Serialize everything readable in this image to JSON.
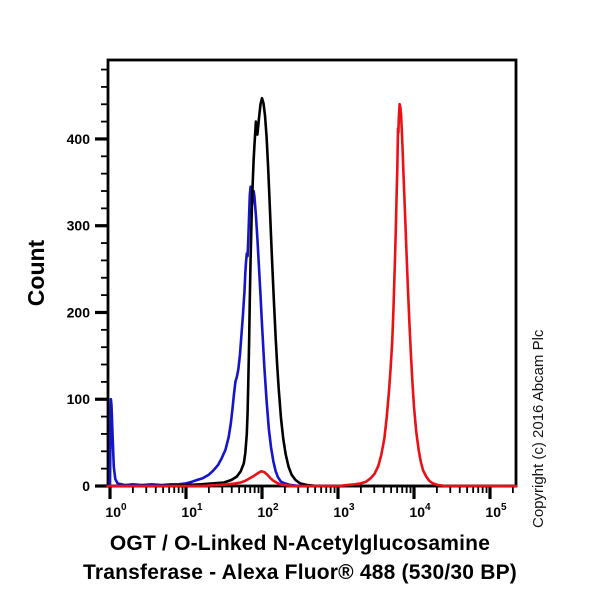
{
  "figure": {
    "title_line1": "OGT / O-Linked N-Acetylglucosamine",
    "title_line2": "Transferase - Alexa Fluor® 488 (530/30 BP)",
    "copyright": "Copyright (c) 2016 Abcam Plc",
    "background_color": "#ffffff",
    "frame_color": "#000000"
  },
  "chart_data": {
    "type": "line",
    "title": "OGT / O-Linked N-Acetylglucosamine Transferase - Alexa Fluor® 488 (530/30 BP)",
    "xlabel": "OGT / O-Linked N-Acetylglucosamine Transferase - Alexa Fluor® 488 (530/30 BP)",
    "ylabel": "Count",
    "grid": false,
    "legend": "none",
    "x_axis": {
      "scale": "log10",
      "tick_base": "10",
      "tick_exponents": [
        0,
        1,
        2,
        3,
        4,
        5
      ],
      "tick_labels": [
        "10^0",
        "10^1",
        "10^2",
        "10^3",
        "10^4",
        "10^5"
      ],
      "range_log10": [
        -0.03,
        5.34
      ]
    },
    "y_axis": {
      "label": "Count",
      "ticks": [
        0,
        100,
        200,
        300,
        400
      ],
      "tick_labels": [
        "0",
        "100",
        "200",
        "300",
        "400"
      ],
      "minor_step": 20,
      "range": [
        0,
        491
      ]
    },
    "point_format": "[log10(fluorescence intensity), count]",
    "series": [
      {
        "name": "blue-curve",
        "color": "#1414cd",
        "peak": {
          "log10_x": 1.85,
          "x": 71,
          "count": 345
        },
        "points": [
          [
            -0.03,
            0
          ],
          [
            0,
            1
          ],
          [
            0.005,
            50
          ],
          [
            0.012,
            100
          ],
          [
            0.02,
            93
          ],
          [
            0.035,
            55
          ],
          [
            0.05,
            22
          ],
          [
            0.07,
            8
          ],
          [
            0.1,
            3
          ],
          [
            0.2,
            1
          ],
          [
            0.3,
            2
          ],
          [
            0.42,
            1
          ],
          [
            0.55,
            2
          ],
          [
            0.68,
            1
          ],
          [
            0.8,
            2
          ],
          [
            0.9,
            2
          ],
          [
            1.0,
            3
          ],
          [
            1.08,
            5
          ],
          [
            1.15,
            7
          ],
          [
            1.22,
            9
          ],
          [
            1.3,
            13
          ],
          [
            1.36,
            18
          ],
          [
            1.42,
            24
          ],
          [
            1.47,
            32
          ],
          [
            1.52,
            42
          ],
          [
            1.56,
            56
          ],
          [
            1.59,
            72
          ],
          [
            1.61,
            88
          ],
          [
            1.63,
            105
          ],
          [
            1.65,
            120
          ],
          [
            1.67,
            126
          ],
          [
            1.69,
            135
          ],
          [
            1.71,
            152
          ],
          [
            1.73,
            175
          ],
          [
            1.75,
            198
          ],
          [
            1.77,
            225
          ],
          [
            1.78,
            245
          ],
          [
            1.79,
            258
          ],
          [
            1.8,
            268
          ],
          [
            1.81,
            265
          ],
          [
            1.82,
            285
          ],
          [
            1.83,
            312
          ],
          [
            1.84,
            335
          ],
          [
            1.85,
            345
          ],
          [
            1.86,
            337
          ],
          [
            1.87,
            325
          ],
          [
            1.88,
            331
          ],
          [
            1.89,
            340
          ],
          [
            1.9,
            334
          ],
          [
            1.92,
            312
          ],
          [
            1.94,
            285
          ],
          [
            1.96,
            252
          ],
          [
            1.98,
            220
          ],
          [
            2.0,
            186
          ],
          [
            2.03,
            138
          ],
          [
            2.06,
            98
          ],
          [
            2.09,
            66
          ],
          [
            2.12,
            44
          ],
          [
            2.15,
            28
          ],
          [
            2.18,
            17
          ],
          [
            2.21,
            10
          ],
          [
            2.25,
            5
          ],
          [
            2.3,
            3
          ],
          [
            2.38,
            1
          ],
          [
            2.5,
            0
          ],
          [
            3.0,
            0
          ]
        ]
      },
      {
        "name": "black-curve",
        "color": "#000000",
        "peak": {
          "log10_x": 2.0,
          "x": 100,
          "count": 447
        },
        "points": [
          [
            -0.03,
            0
          ],
          [
            0.6,
            0
          ],
          [
            1.0,
            1
          ],
          [
            1.2,
            2
          ],
          [
            1.35,
            3
          ],
          [
            1.5,
            4
          ],
          [
            1.6,
            7
          ],
          [
            1.67,
            11
          ],
          [
            1.72,
            17
          ],
          [
            1.76,
            26
          ],
          [
            1.78,
            38
          ],
          [
            1.8,
            60
          ],
          [
            1.81,
            85
          ],
          [
            1.82,
            120
          ],
          [
            1.83,
            165
          ],
          [
            1.84,
            215
          ],
          [
            1.85,
            262
          ],
          [
            1.86,
            300
          ],
          [
            1.87,
            330
          ],
          [
            1.88,
            355
          ],
          [
            1.89,
            375
          ],
          [
            1.9,
            392
          ],
          [
            1.91,
            407
          ],
          [
            1.92,
            420
          ],
          [
            1.93,
            410
          ],
          [
            1.94,
            405
          ],
          [
            1.96,
            424
          ],
          [
            1.98,
            440
          ],
          [
            2.0,
            447
          ],
          [
            2.02,
            441
          ],
          [
            2.04,
            427
          ],
          [
            2.06,
            402
          ],
          [
            2.08,
            368
          ],
          [
            2.1,
            328
          ],
          [
            2.12,
            286
          ],
          [
            2.14,
            246
          ],
          [
            2.16,
            206
          ],
          [
            2.18,
            170
          ],
          [
            2.2,
            139
          ],
          [
            2.22,
            112
          ],
          [
            2.25,
            78
          ],
          [
            2.28,
            54
          ],
          [
            2.31,
            37
          ],
          [
            2.35,
            22
          ],
          [
            2.39,
            13
          ],
          [
            2.44,
            7
          ],
          [
            2.5,
            3
          ],
          [
            2.6,
            1
          ],
          [
            2.72,
            0
          ],
          [
            3.2,
            0
          ],
          [
            5.34,
            0
          ]
        ]
      },
      {
        "name": "red-curve",
        "color": "#ea1016",
        "peak": {
          "log10_x": 3.81,
          "x": 6460,
          "count": 440
        },
        "secondary_bump": {
          "log10_x": 2.0,
          "x": 100,
          "count": 17
        },
        "points": [
          [
            -0.03,
            0
          ],
          [
            0.8,
            0
          ],
          [
            1.2,
            0
          ],
          [
            1.4,
            1
          ],
          [
            1.55,
            2
          ],
          [
            1.65,
            3
          ],
          [
            1.72,
            4
          ],
          [
            1.78,
            6
          ],
          [
            1.84,
            9
          ],
          [
            1.9,
            12
          ],
          [
            1.95,
            15
          ],
          [
            1.99,
            17
          ],
          [
            2.03,
            16
          ],
          [
            2.07,
            13
          ],
          [
            2.11,
            9
          ],
          [
            2.15,
            6
          ],
          [
            2.19,
            4
          ],
          [
            2.24,
            2
          ],
          [
            2.3,
            1
          ],
          [
            2.4,
            0
          ],
          [
            3.0,
            0
          ],
          [
            3.12,
            1
          ],
          [
            3.22,
            2
          ],
          [
            3.3,
            3
          ],
          [
            3.37,
            5
          ],
          [
            3.43,
            9
          ],
          [
            3.48,
            14
          ],
          [
            3.53,
            23
          ],
          [
            3.57,
            36
          ],
          [
            3.61,
            55
          ],
          [
            3.64,
            78
          ],
          [
            3.67,
            108
          ],
          [
            3.69,
            132
          ],
          [
            3.71,
            162
          ],
          [
            3.72,
            180
          ],
          [
            3.73,
            205
          ],
          [
            3.74,
            232
          ],
          [
            3.75,
            262
          ],
          [
            3.76,
            295
          ],
          [
            3.77,
            330
          ],
          [
            3.78,
            365
          ],
          [
            3.785,
            392
          ],
          [
            3.79,
            412
          ],
          [
            3.795,
            407
          ],
          [
            3.8,
            424
          ],
          [
            3.81,
            440
          ],
          [
            3.82,
            437
          ],
          [
            3.83,
            427
          ],
          [
            3.84,
            410
          ],
          [
            3.85,
            388
          ],
          [
            3.86,
            362
          ],
          [
            3.88,
            318
          ],
          [
            3.9,
            272
          ],
          [
            3.92,
            228
          ],
          [
            3.94,
            188
          ],
          [
            3.96,
            150
          ],
          [
            3.98,
            118
          ],
          [
            4.0,
            91
          ],
          [
            4.03,
            62
          ],
          [
            4.06,
            42
          ],
          [
            4.09,
            28
          ],
          [
            4.12,
            18
          ],
          [
            4.16,
            11
          ],
          [
            4.2,
            6
          ],
          [
            4.25,
            3
          ],
          [
            4.32,
            1
          ],
          [
            4.42,
            0
          ],
          [
            5.0,
            0
          ],
          [
            5.34,
            0
          ]
        ]
      }
    ]
  }
}
